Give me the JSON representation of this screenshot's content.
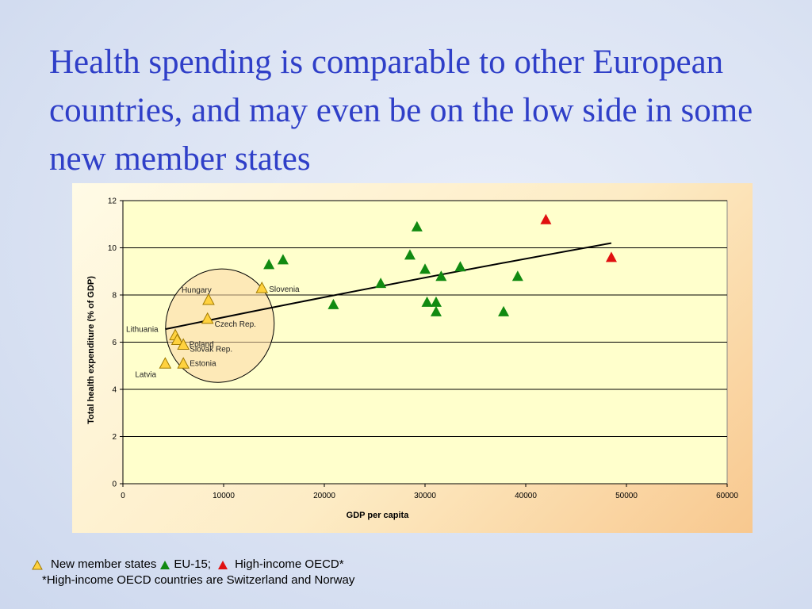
{
  "title": "Health spending is comparable to other European countries, and may even be on the low side in some new member states",
  "legend": {
    "new_member": "New member states",
    "eu15": "EU-15;",
    "oecd": "High-income OECD*"
  },
  "footnote": "*High-income OECD countries are Switzerland and Norway",
  "colors": {
    "title": "#2f3fc8",
    "new_member_fill": "#ffd23f",
    "new_member_stroke": "#a07a00",
    "eu15": "#118a11",
    "oecd": "#e01010"
  },
  "chart_data": {
    "type": "scatter",
    "xlabel": "GDP per capita",
    "ylabel": "Total health expenditure (% of GDP)",
    "xlim": [
      0,
      60000
    ],
    "ylim": [
      0,
      12
    ],
    "x_ticks": [
      "0",
      "10000",
      "20000",
      "30000",
      "40000",
      "50000",
      "60000"
    ],
    "y_ticks": [
      "0",
      "2",
      "4",
      "6",
      "8",
      "10",
      "12"
    ],
    "grid": "horizontal",
    "series": [
      {
        "name": "New member states",
        "points": [
          {
            "x": 8500,
            "y": 7.8,
            "label": "Hungary"
          },
          {
            "x": 13800,
            "y": 8.3,
            "label": "Slovenia"
          },
          {
            "x": 8400,
            "y": 7.0,
            "label": "Czech Rep."
          },
          {
            "x": 5200,
            "y": 6.3,
            "label": "Lithuania"
          },
          {
            "x": 5400,
            "y": 6.1,
            "label": "Poland"
          },
          {
            "x": 6000,
            "y": 5.9,
            "label": "Slovak Rep."
          },
          {
            "x": 6000,
            "y": 5.1,
            "label": "Estonia"
          },
          {
            "x": 4200,
            "y": 5.1,
            "label": "Latvia"
          }
        ]
      },
      {
        "name": "EU-15",
        "points": [
          {
            "x": 14500,
            "y": 9.3
          },
          {
            "x": 15900,
            "y": 9.5
          },
          {
            "x": 20900,
            "y": 7.6
          },
          {
            "x": 25600,
            "y": 8.5
          },
          {
            "x": 28500,
            "y": 9.7
          },
          {
            "x": 29200,
            "y": 10.9
          },
          {
            "x": 30000,
            "y": 9.1
          },
          {
            "x": 30200,
            "y": 7.7
          },
          {
            "x": 31100,
            "y": 7.7
          },
          {
            "x": 31100,
            "y": 7.3
          },
          {
            "x": 31600,
            "y": 8.8
          },
          {
            "x": 33500,
            "y": 9.2
          },
          {
            "x": 37800,
            "y": 7.3
          },
          {
            "x": 39200,
            "y": 8.8
          }
        ]
      },
      {
        "name": "High-income OECD*",
        "points": [
          {
            "x": 42000,
            "y": 11.2
          },
          {
            "x": 48500,
            "y": 9.6
          }
        ]
      }
    ],
    "trendline": [
      [
        4200,
        6.55
      ],
      [
        48500,
        10.2
      ]
    ]
  }
}
